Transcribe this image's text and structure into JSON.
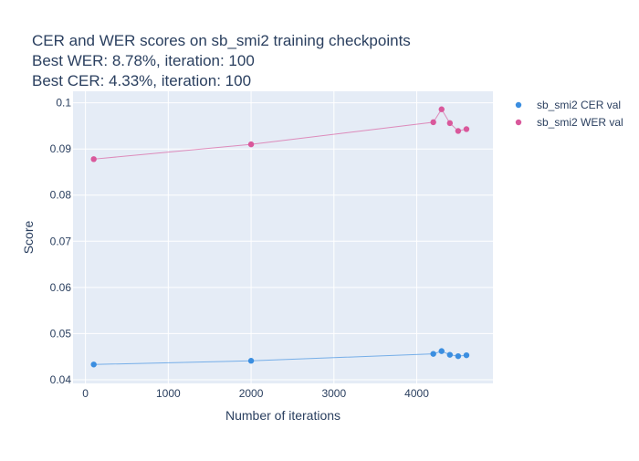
{
  "chart_data": {
    "type": "line",
    "title_lines": [
      "CER and WER scores on sb_smi2 training checkpoints",
      "Best WER: 8.78%,  iteration: 100",
      "Best CER: 4.33%, iteration: 100"
    ],
    "xlabel": "Number of iterations",
    "ylabel": "Score",
    "xlim": [
      -150,
      4920
    ],
    "ylim": [
      0.0392,
      0.1025
    ],
    "x_ticks": [
      0,
      1000,
      2000,
      3000,
      4000
    ],
    "y_ticks": [
      0.04,
      0.05,
      0.06,
      0.07,
      0.08,
      0.09,
      0.1
    ],
    "y_tick_labels": [
      "0.04",
      "0.05",
      "0.06",
      "0.07",
      "0.08",
      "0.09",
      "0.1"
    ],
    "grid": true,
    "legend_position": "top-right",
    "series": [
      {
        "name": "sb_smi2 CER val",
        "color": "#3b8ee0",
        "x": [
          100,
          2000,
          4200,
          4300,
          4400,
          4500,
          4600
        ],
        "y": [
          0.0433,
          0.0441,
          0.0456,
          0.0462,
          0.0454,
          0.0451,
          0.0453
        ]
      },
      {
        "name": "sb_smi2 WER val",
        "color": "#d9589b",
        "x": [
          100,
          2000,
          4200,
          4300,
          4400,
          4500,
          4600
        ],
        "y": [
          0.0878,
          0.091,
          0.0958,
          0.0986,
          0.0956,
          0.0939,
          0.0943
        ]
      }
    ]
  }
}
